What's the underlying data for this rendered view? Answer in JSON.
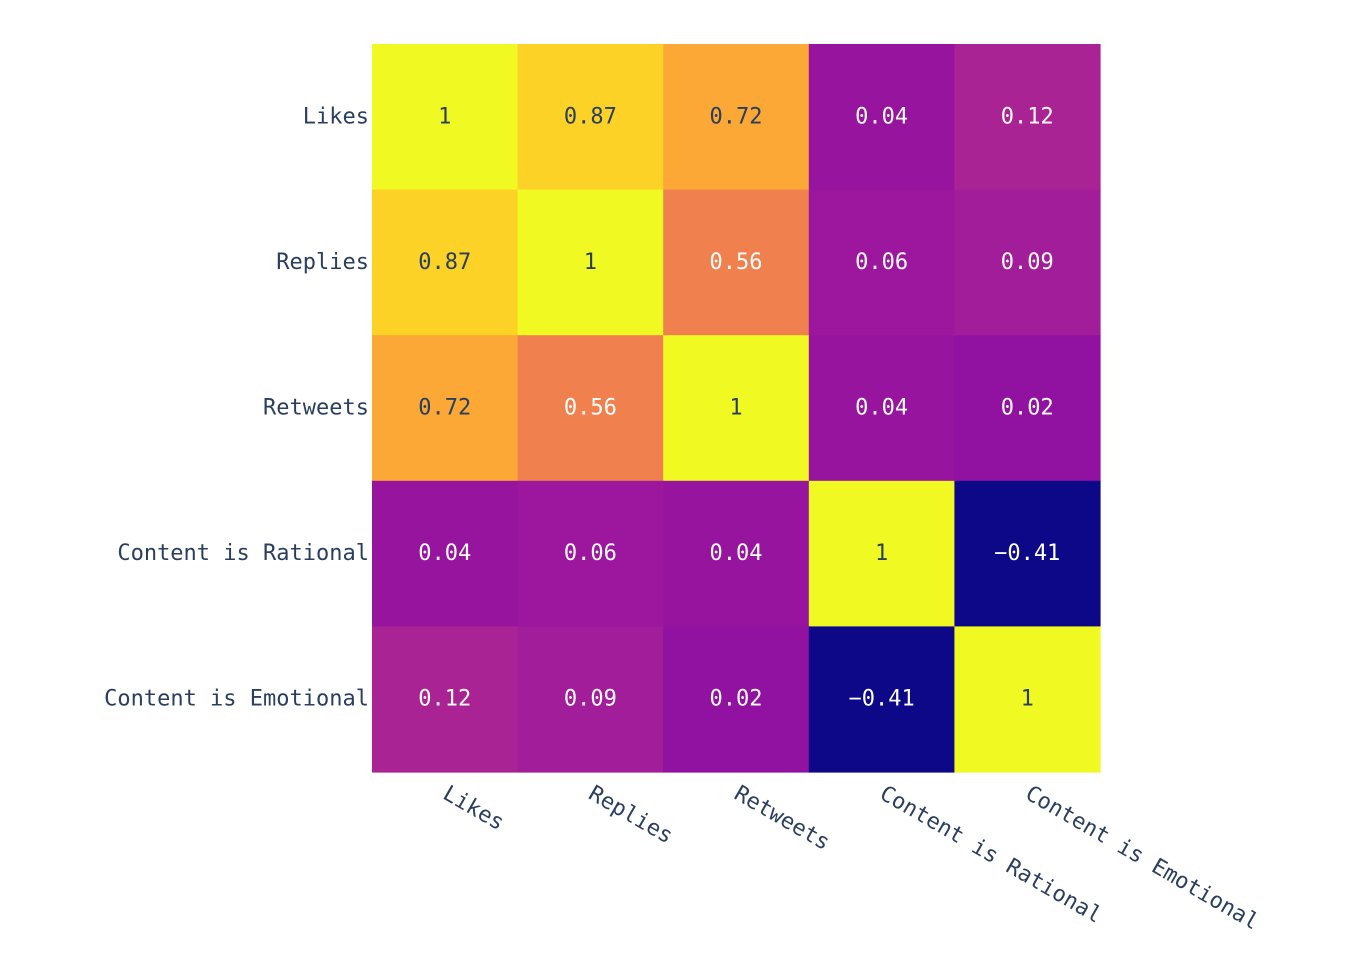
{
  "chart_data": {
    "type": "heatmap",
    "title": "",
    "xlabel": "",
    "ylabel": "",
    "x_categories": [
      "Likes",
      "Replies",
      "Retweets",
      "Content is Rational",
      "Content is Emotional"
    ],
    "y_categories": [
      "Likes",
      "Replies",
      "Retweets",
      "Content is Rational",
      "Content is Emotional"
    ],
    "values": [
      [
        1,
        0.87,
        0.72,
        0.04,
        0.12
      ],
      [
        0.87,
        1,
        0.56,
        0.06,
        0.09
      ],
      [
        0.72,
        0.56,
        1,
        0.04,
        0.02
      ],
      [
        0.04,
        0.06,
        0.04,
        1,
        -0.41
      ],
      [
        0.12,
        0.09,
        0.02,
        -0.41,
        1
      ]
    ],
    "value_labels": [
      [
        "1",
        "0.87",
        "0.72",
        "0.04",
        "0.12"
      ],
      [
        "0.87",
        "1",
        "0.56",
        "0.06",
        "0.09"
      ],
      [
        "0.72",
        "0.56",
        "1",
        "0.04",
        "0.02"
      ],
      [
        "0.04",
        "0.06",
        "0.04",
        "1",
        "−0.41"
      ],
      [
        "0.12",
        "0.09",
        "0.02",
        "−0.41",
        "1"
      ]
    ],
    "zlim": [
      -0.41,
      1
    ],
    "colorscale": [
      "#0d0887",
      "#46039f",
      "#7201a8",
      "#9c179e",
      "#bd3786",
      "#d8576b",
      "#ed7953",
      "#fb9f3a",
      "#fdca26",
      "#f0f921"
    ],
    "x_tick_angle_deg": 30,
    "grid": false,
    "legend": "none",
    "text_color_dark": "#2a3f5f",
    "text_color_light": "#ffffff"
  }
}
